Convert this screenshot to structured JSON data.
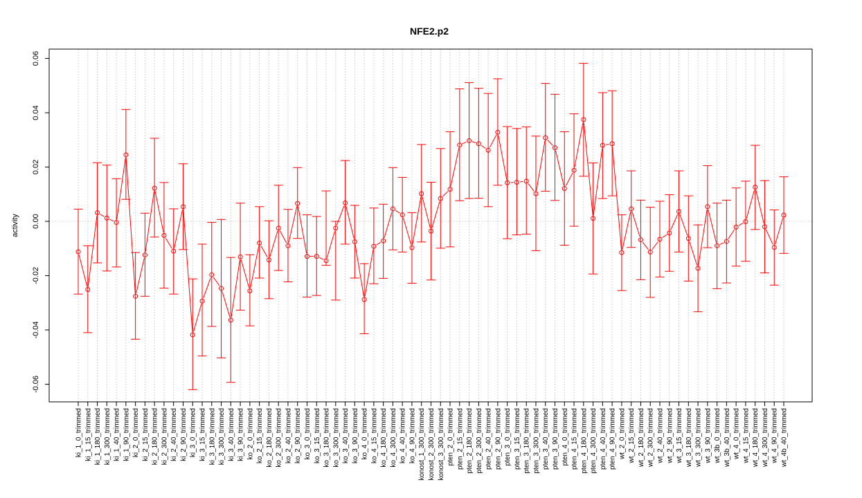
{
  "chart_data": {
    "type": "line",
    "title": "NFE2.p2",
    "xlabel": "",
    "ylabel": "activity",
    "ylim": [
      -0.066,
      0.062
    ],
    "yticks": [
      -0.06,
      -0.04,
      -0.02,
      0.0,
      0.02,
      0.04,
      0.06
    ],
    "ytick_labels": [
      "-0.06",
      "-0.04",
      "-0.02",
      "0.00",
      "0.02",
      "0.04",
      "0.06"
    ],
    "grid": true,
    "color": "#ff0000",
    "categories": [
      "ki_1_0_trimmed",
      "ki_1_15_trimmed",
      "ki_1_180_trimmed",
      "ki_1_300_trimmed",
      "ki_1_40_trimmed",
      "ki_1_90_trimmed",
      "ki_2_0_trimmed",
      "ki_2_15_trimmed",
      "ki_2_180_trimmed",
      "ki_2_300_trimmed",
      "ki_2_40_trimmed",
      "ki_2_90_trimmed",
      "ki_3_0_trimmed",
      "ki_3_15_trimmed",
      "ki_3_180_trimmed",
      "ki_3_300_trimmed",
      "ki_3_40_trimmed",
      "ki_3_90_trimmed",
      "ko_2_0_trimmed",
      "ko_2_15_trimmed",
      "ko_2_180_trimmed",
      "ko_2_300_trimmed",
      "ko_2_40_trimmed",
      "ko_2_90_trimmed",
      "ko_3_0_trimmed",
      "ko_3_15_trimmed",
      "ko_3_180_trimmed",
      "ko_3_300_trimmed",
      "ko_3_40_trimmed",
      "ko_3_90_trimmed",
      "ko_4_0_trimmed",
      "ko_4_15_trimmed",
      "ko_4_180_trimmed",
      "ko_4_300_trimmed",
      "ko_4_40_trimmed",
      "ko_4_90_trimmed",
      "konost_1_300_trimmed",
      "konost_2_300_trimmed",
      "konost_3_300_trimmed",
      "pten_2_0_trimmed",
      "pten_2_15_trimmed",
      "pten_2_180_trimmed",
      "pten_2_300_trimmed",
      "pten_2_40_trimmed",
      "pten_2_90_trimmed",
      "pten_3_0_trimmed",
      "pten_3_15_trimmed",
      "pten_3_180_trimmed",
      "pten_3_300_trimmed",
      "pten_3_40_trimmed",
      "pten_3_90_trimmed",
      "pten_4_0_trimmed",
      "pten_4_15_trimmed",
      "pten_4_180_trimmed",
      "pten_4_300_trimmed",
      "pten_4_40_trimmed",
      "pten_4_90_trimmed",
      "wt_2_0_trimmed",
      "wt_2_15_trimmed",
      "wt_2_180_trimmed",
      "wt_2_300_trimmed",
      "wt_2_40_trimmed",
      "wt_2_90_trimmed",
      "wt_3_15_trimmed",
      "wt_3_180_trimmed",
      "wt_3_300_trimmed",
      "wt_3_90_trimmed",
      "wt_3b_0_trimmed",
      "wt_3b_40_trimmed",
      "wt_4_0_trimmed",
      "wt_4_15_trimmed",
      "wt_4_180_trimmed",
      "wt_4_300_trimmed",
      "wt_4_90_trimmed",
      "wt_4b_40_trimmed"
    ],
    "values": [
      -0.0112,
      -0.0251,
      0.0032,
      0.0012,
      -0.0004,
      0.0245,
      -0.0276,
      -0.0124,
      0.0122,
      -0.0052,
      -0.011,
      0.0054,
      -0.0418,
      -0.0294,
      -0.0197,
      -0.0247,
      -0.0364,
      -0.0131,
      -0.0256,
      -0.008,
      -0.0142,
      -0.0025,
      -0.009,
      0.0066,
      -0.0129,
      -0.0129,
      -0.0145,
      -0.0025,
      0.0068,
      -0.0075,
      -0.0288,
      -0.0092,
      -0.0072,
      0.0046,
      0.0024,
      -0.0097,
      0.0102,
      -0.0036,
      0.0084,
      0.0118,
      0.0281,
      0.0297,
      0.0286,
      0.0262,
      0.0328,
      0.0142,
      0.0144,
      0.0148,
      0.0102,
      0.0308,
      0.0271,
      0.0121,
      0.0188,
      0.0375,
      0.0011,
      0.028,
      0.0286,
      -0.0115,
      0.0046,
      -0.0068,
      -0.0113,
      -0.0066,
      -0.0043,
      0.0036,
      -0.0063,
      -0.0173,
      0.0054,
      -0.009,
      -0.0074,
      -0.0021,
      -0.0001,
      0.0126,
      -0.002,
      -0.0096,
      0.0023
    ],
    "upper": [
      0.0045,
      -0.009,
      0.0216,
      0.0207,
      0.0157,
      0.0412,
      -0.0115,
      0.003,
      0.0306,
      0.0143,
      0.0046,
      0.0212,
      -0.0212,
      -0.0084,
      -0.0004,
      0.0007,
      -0.0133,
      0.0067,
      -0.0123,
      0.0054,
      0.0002,
      0.0133,
      0.0044,
      0.0198,
      0.0024,
      0.0018,
      0.0112,
      0.0,
      0.0224,
      0.0059,
      -0.0156,
      0.0049,
      0.0063,
      0.0198,
      0.0162,
      0.0032,
      0.0283,
      0.0144,
      0.0268,
      0.033,
      0.0488,
      0.0511,
      0.049,
      0.0471,
      0.0525,
      0.0349,
      0.0342,
      0.0348,
      0.0314,
      0.0508,
      0.0468,
      0.033,
      0.0396,
      0.0582,
      0.0215,
      0.0474,
      0.0481,
      0.0024,
      0.0186,
      0.0078,
      0.0052,
      0.0074,
      0.0098,
      0.0186,
      0.0094,
      -0.0013,
      0.0205,
      0.0067,
      0.0078,
      0.0123,
      0.0148,
      0.028,
      0.015,
      0.0042,
      0.0164
    ],
    "lower": [
      -0.0268,
      -0.041,
      -0.0153,
      -0.0183,
      -0.0168,
      0.0081,
      -0.0434,
      -0.0276,
      -0.0058,
      -0.0246,
      -0.0268,
      -0.0104,
      -0.062,
      -0.0496,
      -0.0387,
      -0.0503,
      -0.0593,
      -0.0327,
      -0.0385,
      -0.0209,
      -0.0285,
      -0.0181,
      -0.0223,
      -0.0063,
      -0.0279,
      -0.0273,
      -0.0162,
      -0.029,
      -0.0084,
      -0.0209,
      -0.0414,
      -0.023,
      -0.021,
      -0.0105,
      -0.0113,
      -0.0228,
      -0.0076,
      -0.0216,
      -0.0099,
      -0.0094,
      0.0076,
      0.0084,
      0.0085,
      0.0054,
      0.0133,
      -0.0064,
      -0.005,
      -0.0047,
      -0.0108,
      0.0111,
      0.0077,
      -0.0088,
      -0.0018,
      0.0166,
      -0.0194,
      0.0084,
      0.0094,
      -0.0255,
      -0.0096,
      -0.0215,
      -0.028,
      -0.0205,
      -0.0184,
      -0.0113,
      -0.022,
      -0.0333,
      -0.0097,
      -0.0248,
      -0.0227,
      -0.0165,
      -0.0147,
      -0.003,
      -0.019,
      -0.0235,
      -0.0118
    ]
  }
}
